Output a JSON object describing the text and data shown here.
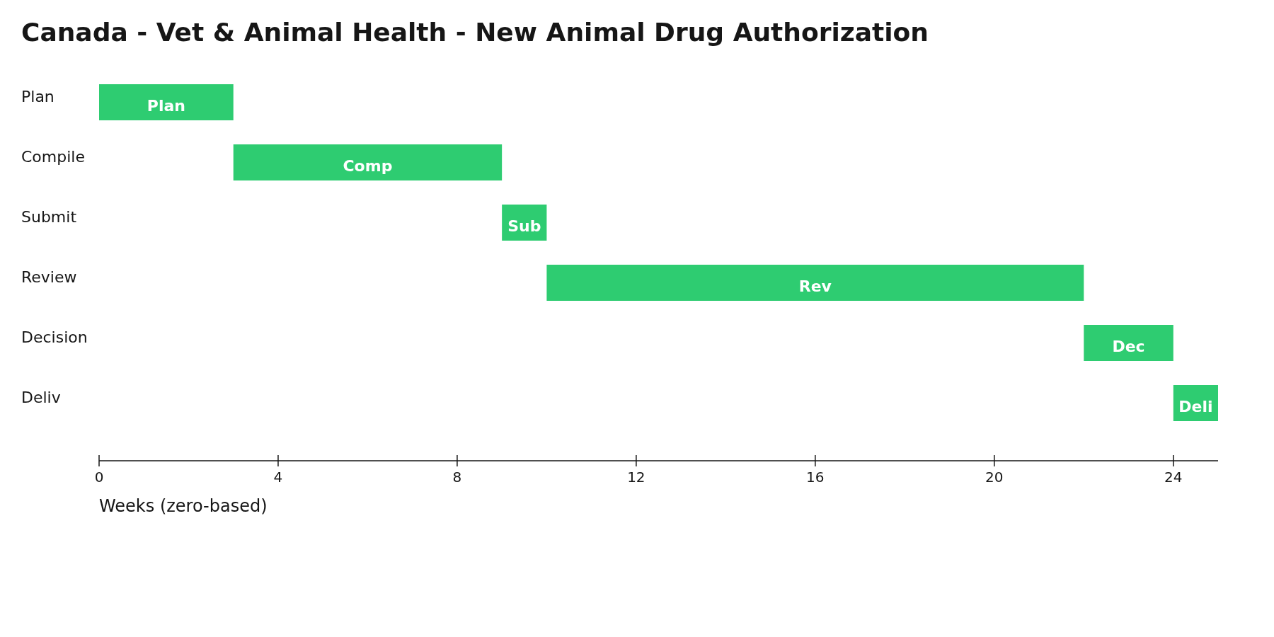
{
  "chart_data": {
    "type": "bar",
    "orientation": "horizontal",
    "title": "Canada - Vet & Animal Health - New Animal Drug Authorization",
    "xlabel": "Weeks (zero-based)",
    "categories": [
      "Plan",
      "Compile",
      "Submit",
      "Review",
      "Decision",
      "Deliv"
    ],
    "base": [
      0,
      3,
      9,
      10,
      22,
      24
    ],
    "values": [
      3,
      6,
      1,
      12,
      2,
      1
    ],
    "value_labels": [
      "Plan",
      "Comp",
      "Sub",
      "Rev",
      "Dec",
      "Deli"
    ],
    "color": "#2ecc71",
    "xlim": [
      0,
      25
    ],
    "xticks": [
      0,
      4,
      8,
      12,
      16,
      20,
      24
    ],
    "grid": false
  }
}
